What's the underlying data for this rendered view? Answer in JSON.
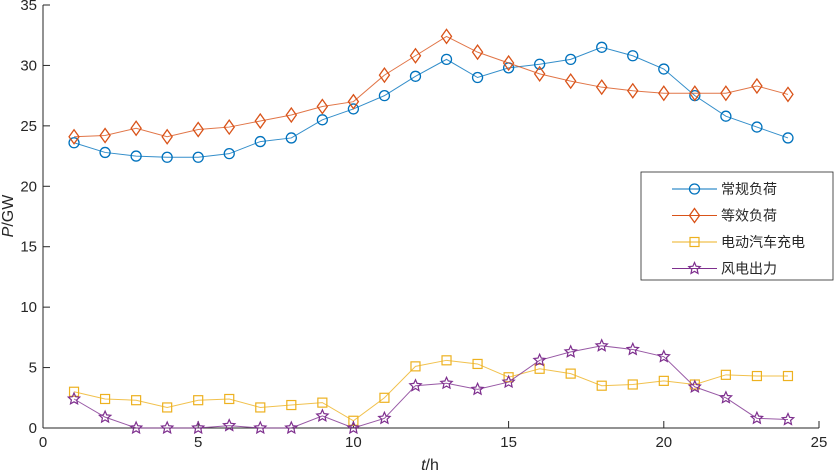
{
  "chart_data": {
    "type": "line",
    "title": "",
    "xlabel_italic": "t",
    "xlabel_unit": "/h",
    "ylabel_italic": "P",
    "ylabel_unit": "/GW",
    "xlim": [
      0,
      25
    ],
    "ylim": [
      0,
      35
    ],
    "xticks": [
      0,
      5,
      10,
      15,
      20,
      25
    ],
    "yticks": [
      0,
      5,
      10,
      15,
      20,
      25,
      30,
      35
    ],
    "grid": false,
    "legend_position": "right",
    "x": [
      1,
      2,
      3,
      4,
      5,
      6,
      7,
      8,
      9,
      10,
      11,
      12,
      13,
      14,
      15,
      16,
      17,
      18,
      19,
      20,
      21,
      22,
      23,
      24
    ],
    "series": [
      {
        "name": "常规负荷",
        "color": "#0072BD",
        "marker": "circle",
        "values": [
          23.6,
          22.8,
          22.5,
          22.4,
          22.4,
          22.7,
          23.7,
          24.0,
          25.5,
          26.4,
          27.5,
          29.1,
          30.5,
          29.0,
          29.8,
          30.1,
          30.5,
          31.5,
          30.8,
          29.7,
          27.5,
          25.8,
          24.9,
          24.0
        ]
      },
      {
        "name": "等效负荷",
        "color": "#D95319",
        "marker": "diamond",
        "values": [
          24.1,
          24.2,
          24.8,
          24.1,
          24.7,
          24.9,
          25.4,
          25.9,
          26.6,
          27.0,
          29.2,
          30.8,
          32.4,
          31.1,
          30.2,
          29.3,
          28.7,
          28.2,
          27.9,
          27.7,
          27.7,
          27.7,
          28.3,
          27.6
        ]
      },
      {
        "name": "电动汽车充电",
        "color": "#EDB120",
        "marker": "square",
        "values": [
          3.0,
          2.4,
          2.3,
          1.7,
          2.3,
          2.4,
          1.7,
          1.9,
          2.1,
          0.6,
          2.5,
          5.1,
          5.6,
          5.3,
          4.2,
          4.9,
          4.5,
          3.5,
          3.6,
          3.9,
          3.6,
          4.4,
          4.3,
          4.3
        ]
      },
      {
        "name": "风电出力",
        "color": "#7E2F8E",
        "marker": "star",
        "values": [
          2.4,
          0.9,
          0.0,
          0.0,
          0.0,
          0.2,
          0.0,
          0.0,
          1.0,
          0.0,
          0.8,
          3.5,
          3.7,
          3.2,
          3.8,
          5.6,
          6.3,
          6.8,
          6.5,
          5.9,
          3.4,
          2.5,
          0.8,
          0.7
        ]
      }
    ]
  }
}
